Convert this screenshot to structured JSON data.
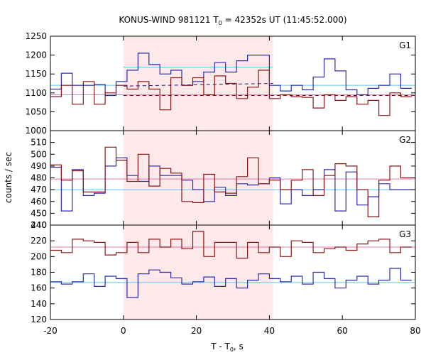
{
  "chart_data": {
    "type": "line",
    "title": "KONUS-WIND 981121 T",
    "title_sub": "0",
    "title_rest": " = 42352s UT (11:45:52.000)",
    "xlabel_main": "T - T",
    "xlabel_sub": "0",
    "xlabel_rest": ", s",
    "ylabel": "counts / sec",
    "xlim": [
      -20,
      80
    ],
    "xticks": [
      "-20",
      "0",
      "20",
      "40",
      "60",
      "80"
    ],
    "shaded_interval": [
      0,
      41
    ],
    "colors": {
      "shade": "#fde8ea",
      "blue": "#2b2bb0",
      "red": "#8b1515",
      "cyan_fit": "#5cc8e8",
      "pink_fit": "#e87aa8",
      "dash_blue": "#1a1a70",
      "dash_red": "#7a0f0f"
    },
    "bin_edges": [
      -20,
      -17,
      -14,
      -11,
      -8,
      -5,
      -2,
      1,
      4,
      7,
      10,
      13,
      16,
      19,
      22,
      25,
      28,
      31,
      34,
      37,
      40,
      43,
      46,
      49,
      52,
      55,
      58,
      61,
      64,
      67,
      70,
      73,
      76,
      79
    ],
    "panels": [
      {
        "label": "G1",
        "ylim": [
          1000,
          1250
        ],
        "yticks": [
          "1000",
          "1050",
          "1100",
          "1150",
          "1200",
          "1250"
        ],
        "series": [
          {
            "color_key": "blue",
            "values": [
              1110,
              1152,
              1120,
              1120,
              1122,
              1093,
              1130,
              1160,
              1205,
              1175,
              1150,
              1160,
              1120,
              1130,
              1155,
              1180,
              1155,
              1185,
              1200,
              1200,
              1120,
              1105,
              1120,
              1108,
              1142,
              1190,
              1158,
              1108,
              1095,
              1112,
              1120,
              1150,
              1112
            ]
          },
          {
            "color_key": "red",
            "values": [
              1090,
              1120,
              1070,
              1130,
              1070,
              1100,
              1120,
              1110,
              1130,
              1110,
              1055,
              1140,
              1120,
              1140,
              1095,
              1145,
              1125,
              1085,
              1115,
              1160,
              1085,
              1095,
              1090,
              1088,
              1060,
              1095,
              1080,
              1090,
              1070,
              1080,
              1040,
              1100,
              1090
            ]
          }
        ],
        "fits": [
          {
            "color_key": "cyan_fit",
            "segments": [
              [
                -20,
                1120,
                0
              ],
              [
                0,
                1168,
                41
              ],
              [
                41,
                1120,
                80
              ]
            ]
          },
          {
            "color_key": "pink_fit",
            "segments": [
              [
                -20,
                1095,
                80
              ]
            ]
          }
        ],
        "dashed": [
          {
            "color_key": "dash_blue",
            "from": [
              0,
              1118
            ],
            "to": [
              41,
              1125
            ]
          },
          {
            "color_key": "dash_red",
            "from": [
              0,
              1093
            ],
            "to": [
              80,
              1093
            ]
          }
        ]
      },
      {
        "label": "G2",
        "ylim": [
          440,
          520
        ],
        "yticks": [
          "440",
          "450",
          "460",
          "470",
          "480",
          "490",
          "500",
          "510"
        ],
        "series": [
          {
            "color_key": "blue",
            "values": [
              489,
              452,
              487,
              465,
              467,
              490,
              497,
              482,
              477,
              490,
              482,
              482,
              478,
              470,
              460,
              472,
              465,
              475,
              474,
              475,
              480,
              458,
              470,
              465,
              470,
              487,
              452,
              485,
              457,
              464,
              475,
              470,
              470
            ]
          },
          {
            "color_key": "red",
            "values": [
              491,
              478,
              486,
              468,
              468,
              506,
              495,
              477,
              500,
              473,
              488,
              484,
              460,
              459,
              483,
              468,
              467,
              481,
              497,
              475,
              478,
              470,
              478,
              487,
              465,
              482,
              492,
              490,
              470,
              447,
              478,
              490,
              480
            ]
          }
        ],
        "fits": [
          {
            "color_key": "cyan_fit",
            "segments": [
              [
                -20,
                470,
                80
              ]
            ]
          },
          {
            "color_key": "pink_fit",
            "segments": [
              [
                -20,
                479,
                80
              ]
            ]
          }
        ],
        "dashed": []
      },
      {
        "label": "G3",
        "ylim": [
          120,
          240
        ],
        "yticks": [
          "120",
          "140",
          "160",
          "180",
          "200",
          "220",
          "240"
        ],
        "series": [
          {
            "color_key": "blue",
            "values": [
              168,
              165,
              168,
              178,
              162,
              175,
              172,
              148,
              178,
              183,
              180,
              173,
              165,
              168,
              174,
              162,
              172,
              160,
              170,
              178,
              172,
              168,
              175,
              165,
              180,
              172,
              160,
              170,
              175,
              165,
              170,
              185,
              170
            ]
          },
          {
            "color_key": "red",
            "values": [
              208,
              205,
              222,
              220,
              218,
              202,
              205,
              218,
              205,
              222,
              212,
              222,
              210,
              232,
              200,
              218,
              218,
              198,
              218,
              205,
              212,
              200,
              220,
              218,
              205,
              210,
              212,
              208,
              216,
              220,
              222,
              205,
              212
            ]
          }
        ],
        "fits": [
          {
            "color_key": "cyan_fit",
            "segments": [
              [
                -20,
                167,
                80
              ]
            ]
          },
          {
            "color_key": "pink_fit",
            "segments": [
              [
                -20,
                212,
                80
              ]
            ]
          }
        ],
        "dashed": []
      }
    ]
  }
}
